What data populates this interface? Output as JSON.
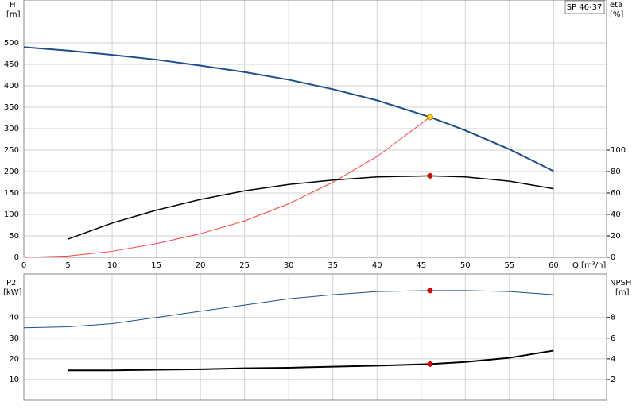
{
  "chart_data": [
    {
      "type": "line",
      "model": "SP 46-37",
      "y_label": "H",
      "y_unit": "[m]",
      "y2_label": "eta",
      "y2_unit": "[%]",
      "x_label": "Q [m³/h]",
      "xlim": [
        0,
        66
      ],
      "xticks": [
        0,
        5,
        10,
        15,
        20,
        25,
        30,
        35,
        40,
        45,
        50,
        55,
        60
      ],
      "show_x_tick_labels": true,
      "ylim": [
        0,
        600
      ],
      "yticks": [
        0,
        50,
        100,
        150,
        200,
        250,
        300,
        350,
        400,
        450,
        500
      ],
      "y2lim": [
        0,
        240
      ],
      "y2ticks": [
        0,
        20,
        40,
        60,
        80,
        100
      ],
      "grid": true,
      "series": [
        {
          "x": [
            0,
            5,
            10,
            15,
            20,
            25,
            30,
            35,
            40,
            46,
            50,
            55,
            60
          ],
          "values": [
            490,
            482,
            472,
            461,
            447,
            432,
            414,
            392,
            366,
            327,
            296,
            252,
            201
          ],
          "color": "#1f4e8c",
          "width": 2
        },
        {
          "x": [
            0,
            5,
            10,
            15,
            20,
            25,
            30,
            35,
            40,
            46
          ],
          "values": [
            0,
            3,
            14,
            32,
            55,
            85,
            125,
            175,
            235,
            327
          ],
          "color": "#ff4040",
          "width": 1
        },
        {
          "x": [
            5,
            10,
            15,
            20,
            25,
            30,
            35,
            40,
            46,
            50,
            55,
            60
          ],
          "values": [
            17,
            32,
            44,
            54,
            62,
            68,
            72,
            75,
            76,
            75,
            71,
            64
          ],
          "color": "#000000",
          "width": 1.5,
          "axis": "y2"
        },
        {
          "x": [
            46
          ],
          "values": [
            327
          ],
          "color": "#ffd700",
          "marker": true
        },
        {
          "x": [
            46
          ],
          "values": [
            76
          ],
          "color": "#e00000",
          "marker": true,
          "axis": "y2"
        }
      ]
    },
    {
      "type": "line",
      "y_label": "P2",
      "y_unit": "[kW]",
      "y2_label": "NPSH",
      "y2_unit": "[m]",
      "xlim": [
        0,
        66
      ],
      "xticks": [
        0,
        5,
        10,
        15,
        20,
        25,
        30,
        35,
        40,
        45,
        50,
        55,
        60
      ],
      "show_x_tick_labels": false,
      "ylim": [
        0,
        61
      ],
      "yticks": [
        10,
        20,
        30,
        40
      ],
      "y2lim": [
        0,
        12.2
      ],
      "y2ticks": [
        2,
        4,
        6,
        8
      ],
      "grid": true,
      "series": [
        {
          "x": [
            0,
            5,
            10,
            15,
            20,
            25,
            30,
            35,
            40,
            46,
            50,
            55,
            60
          ],
          "values": [
            35,
            35.5,
            37,
            40,
            43,
            46,
            49,
            51,
            52.5,
            53,
            53,
            52.5,
            51
          ],
          "color": "#1f4e8c",
          "width": 1
        },
        {
          "x": [
            5,
            10,
            15,
            20,
            25,
            30,
            35,
            40,
            46,
            50,
            55,
            60
          ],
          "values": [
            2.9,
            2.9,
            2.95,
            3.0,
            3.1,
            3.15,
            3.25,
            3.35,
            3.5,
            3.7,
            4.1,
            4.8
          ],
          "color": "#000000",
          "width": 2,
          "axis": "y2"
        },
        {
          "x": [
            46
          ],
          "values": [
            53
          ],
          "color": "#e00000",
          "marker": true
        },
        {
          "x": [
            46
          ],
          "values": [
            3.5
          ],
          "color": "#e00000",
          "marker": true,
          "axis": "y2"
        }
      ]
    }
  ]
}
